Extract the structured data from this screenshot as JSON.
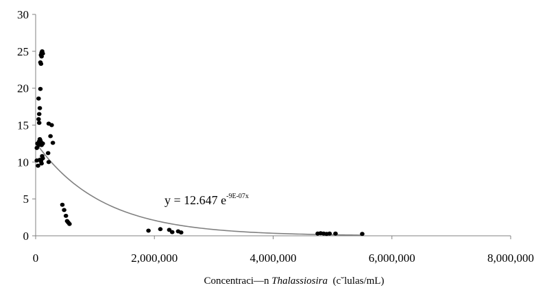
{
  "chart_data": {
    "type": "scatter",
    "xlim": [
      0,
      8000000
    ],
    "ylim": [
      0,
      30
    ],
    "x_ticks": [
      "0",
      "2,000,000",
      "4,000,000",
      "6,000,000",
      "8,000,000"
    ],
    "y_ticks": [
      "0",
      "5",
      "10",
      "15",
      "20",
      "25",
      "30"
    ],
    "xlabel_prefix": "Concentraci—n ",
    "xlabel_italic": "Thalassiosira",
    "xlabel_suffix": "  (c˘lulas/mL)",
    "equation": "y = 12.647 e",
    "equation_exponent": "-9E-07x",
    "trendline": {
      "type": "exponential",
      "a": 12.647,
      "b": -9e-07
    },
    "point_color": "#000000",
    "trend_color": "#808080",
    "grid": false,
    "legend": "none",
    "points": [
      [
        30000,
        12.5
      ],
      [
        20000,
        10.2
      ],
      [
        40000,
        9.5
      ],
      [
        20000,
        11.9
      ],
      [
        50000,
        12.3
      ],
      [
        60000,
        12.8
      ],
      [
        70000,
        13.1
      ],
      [
        80000,
        12.9
      ],
      [
        90000,
        12.4
      ],
      [
        100000,
        12.6
      ],
      [
        110000,
        10.8
      ],
      [
        70000,
        10.3
      ],
      [
        90000,
        10.1
      ],
      [
        100000,
        9.8
      ],
      [
        120000,
        10.5
      ],
      [
        50000,
        15.8
      ],
      [
        60000,
        15.3
      ],
      [
        60000,
        16.5
      ],
      [
        70000,
        17.3
      ],
      [
        50000,
        18.6
      ],
      [
        80000,
        19.9
      ],
      [
        80000,
        23.5
      ],
      [
        90000,
        23.3
      ],
      [
        90000,
        24.5
      ],
      [
        100000,
        24.8
      ],
      [
        110000,
        25.0
      ],
      [
        100000,
        24.3
      ],
      [
        120000,
        24.7
      ],
      [
        100000,
        12.3
      ],
      [
        120000,
        12.5
      ],
      [
        220000,
        15.2
      ],
      [
        270000,
        15.0
      ],
      [
        250000,
        13.5
      ],
      [
        290000,
        12.6
      ],
      [
        210000,
        11.2
      ],
      [
        220000,
        10.0
      ],
      [
        450000,
        4.2
      ],
      [
        480000,
        3.5
      ],
      [
        510000,
        2.7
      ],
      [
        530000,
        2.0
      ],
      [
        550000,
        1.8
      ],
      [
        570000,
        1.6
      ],
      [
        1900000,
        0.7
      ],
      [
        2100000,
        0.9
      ],
      [
        2250000,
        0.8
      ],
      [
        2300000,
        0.5
      ],
      [
        2400000,
        0.6
      ],
      [
        2450000,
        0.45
      ],
      [
        4750000,
        0.3
      ],
      [
        4800000,
        0.35
      ],
      [
        4850000,
        0.3
      ],
      [
        4900000,
        0.25
      ],
      [
        4950000,
        0.3
      ],
      [
        5050000,
        0.3
      ],
      [
        5500000,
        0.25
      ]
    ]
  }
}
